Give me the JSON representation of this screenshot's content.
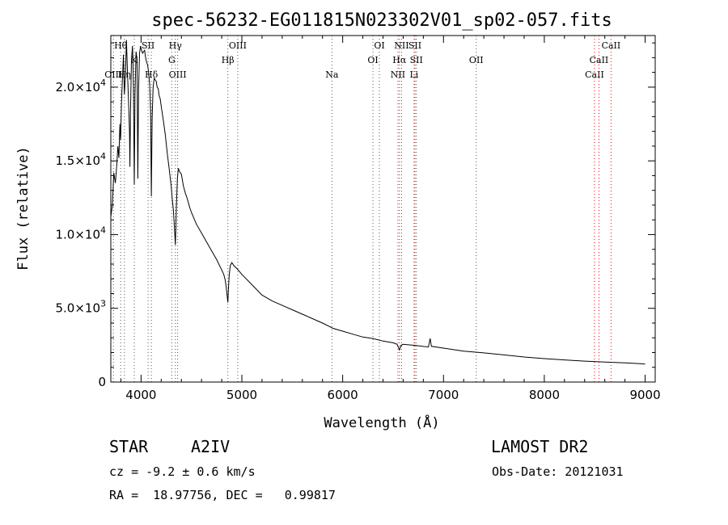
{
  "chart_data": {
    "type": "line",
    "title": "spec-56232-EG011815N023302V01_sp02-057.fits",
    "xlabel": "Wavelength (Å)",
    "ylabel": "Flux (relative)",
    "xlim": [
      3700,
      9100
    ],
    "ylim": [
      0,
      23500
    ],
    "x_ticks": [
      4000,
      5000,
      6000,
      7000,
      8000,
      9000
    ],
    "x_tick_labels": [
      "4000",
      "5000",
      "6000",
      "7000",
      "8000",
      "9000"
    ],
    "y_ticks": [
      0,
      5000,
      10000,
      15000,
      20000
    ],
    "y_tick_labels": [
      {
        "mant": "0",
        "exp": ""
      },
      {
        "mant": "5.0×10",
        "exp": "3"
      },
      {
        "mant": "1.0×10",
        "exp": "4"
      },
      {
        "mant": "1.5×10",
        "exp": "4"
      },
      {
        "mant": "2.0×10",
        "exp": "4"
      }
    ],
    "series": [
      {
        "x": [
          3700,
          3715,
          3730,
          3745,
          3760,
          3770,
          3780,
          3790,
          3797,
          3805,
          3815,
          3825,
          3835,
          3845,
          3855,
          3865,
          3875,
          3885,
          3889,
          3895,
          3905,
          3915,
          3925,
          3933,
          3940,
          3950,
          3960,
          3968,
          3975,
          3985,
          3995,
          4005,
          4015,
          4025,
          4035,
          4045,
          4055,
          4065,
          4075,
          4085,
          4095,
          4102,
          4110,
          4120,
          4130,
          4140,
          4150,
          4160,
          4170,
          4180,
          4190,
          4200,
          4220,
          4240,
          4260,
          4280,
          4300,
          4310,
          4320,
          4330,
          4335,
          4340,
          4345,
          4350,
          4360,
          4370,
          4380,
          4390,
          4400,
          4410,
          4420,
          4440,
          4460,
          4480,
          4500,
          4550,
          4600,
          4650,
          4700,
          4750,
          4800,
          4820,
          4835,
          4845,
          4855,
          4861,
          4868,
          4875,
          4885,
          4900,
          4920,
          4950,
          5000,
          5100,
          5200,
          5300,
          5400,
          5500,
          5600,
          5700,
          5800,
          5890,
          5900,
          6000,
          6100,
          6200,
          6300,
          6400,
          6500,
          6540,
          6563,
          6580,
          6600,
          6700,
          6850,
          6868,
          6880,
          7000,
          7200,
          7400,
          7600,
          7800,
          8000,
          8200,
          8400,
          8600,
          8800,
          8950,
          9000
        ],
        "y": [
          11200,
          12000,
          14200,
          13500,
          14800,
          16000,
          15200,
          17500,
          16400,
          18800,
          20500,
          22200,
          19500,
          20800,
          23200,
          21000,
          19200,
          17000,
          14600,
          18200,
          21800,
          22800,
          20000,
          13400,
          19500,
          22400,
          21900,
          13800,
          19800,
          22300,
          22800,
          22500,
          22300,
          22400,
          22500,
          22000,
          21700,
          21500,
          21000,
          20200,
          18400,
          12600,
          17900,
          20000,
          20600,
          20500,
          20400,
          20000,
          19900,
          19400,
          19200,
          18700,
          17800,
          16800,
          15500,
          14400,
          13200,
          12400,
          11700,
          10600,
          10000,
          9300,
          10400,
          11800,
          13800,
          14500,
          14300,
          14200,
          14100,
          13700,
          13300,
          12800,
          12400,
          11900,
          11500,
          10700,
          10100,
          9500,
          8900,
          8300,
          7600,
          7300,
          6900,
          6400,
          5800,
          5400,
          6500,
          7300,
          7900,
          8100,
          7900,
          7700,
          7300,
          6600,
          5900,
          5500,
          5200,
          4900,
          4600,
          4300,
          4000,
          3700,
          3650,
          3450,
          3250,
          3050,
          2950,
          2780,
          2660,
          2560,
          2180,
          2500,
          2560,
          2500,
          2380,
          2950,
          2420,
          2300,
          2100,
          1980,
          1840,
          1700,
          1590,
          1500,
          1420,
          1360,
          1300,
          1250,
          1220
        ]
      }
    ],
    "lines": [
      {
        "label": "Hθ",
        "x": 3798,
        "row": 0,
        "color": "#555555"
      },
      {
        "label": "OIII",
        "x": 3726,
        "row": 2,
        "color": "#555555"
      },
      {
        "label": "Hη",
        "x": 3835,
        "row": 2,
        "color": "#555555"
      },
      {
        "label": "K",
        "x": 3933,
        "row": 1,
        "color": "#555555"
      },
      {
        "label": "SII",
        "x": 4070,
        "row": 0,
        "color": "#555555"
      },
      {
        "label": "Hδ",
        "x": 4102,
        "row": 2,
        "color": "#555555"
      },
      {
        "label": "Hγ",
        "x": 4340,
        "row": 0,
        "color": "#555555"
      },
      {
        "label": "G",
        "x": 4305,
        "row": 1,
        "color": "#555555"
      },
      {
        "label": "OIII",
        "x": 4363,
        "row": 2,
        "color": "#555555"
      },
      {
        "label": "Hβ",
        "x": 4861,
        "row": 1,
        "color": "#555555"
      },
      {
        "label": "OIII",
        "x": 4959,
        "row": 0,
        "color": "#555555"
      },
      {
        "label": "Na",
        "x": 5893,
        "row": 2,
        "color": "#555555"
      },
      {
        "label": "OI",
        "x": 6300,
        "row": 1,
        "color": "#555555"
      },
      {
        "label": "OI",
        "x": 6364,
        "row": 0,
        "color": "#555555"
      },
      {
        "label": "NII",
        "x": 6548,
        "row": 2,
        "color": "#555555"
      },
      {
        "label": "NII",
        "x": 6584,
        "row": 0,
        "color": "#555555"
      },
      {
        "label": "Hα",
        "x": 6563,
        "row": 1,
        "color": "#ff0000"
      },
      {
        "label": "SII",
        "x": 6717,
        "row": 0,
        "color": "#555555"
      },
      {
        "label": "SII",
        "x": 6731,
        "row": 1,
        "color": "#555555"
      },
      {
        "label": "Li",
        "x": 6708,
        "row": 2,
        "color": "#ff0000"
      },
      {
        "label": "OII",
        "x": 7325,
        "row": 1,
        "color": "#555555"
      },
      {
        "label": "CaII",
        "x": 8498,
        "row": 2,
        "color": "#ff0000"
      },
      {
        "label": "CaII",
        "x": 8542,
        "row": 1,
        "color": "#ff0000"
      },
      {
        "label": "CaII",
        "x": 8662,
        "row": 0,
        "color": "#ff0000"
      }
    ],
    "grid": false,
    "legend": "none"
  },
  "info": {
    "object_class": "STAR",
    "subclass": "A2IV",
    "survey": "LAMOST DR2",
    "cz_line": "cz = -9.2 ± 0.6 km/s",
    "obs_date": "Obs-Date: 20121031",
    "coords_line": "RA =  18.97756, DEC =   0.99817"
  }
}
